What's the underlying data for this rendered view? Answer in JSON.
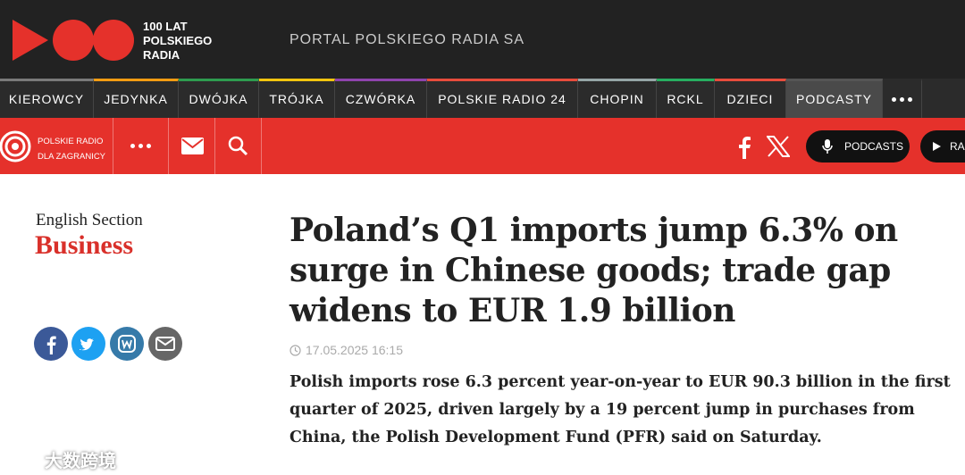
{
  "header": {
    "logo_text": [
      "100 LAT",
      "POLSKIEGO",
      "RADIA"
    ],
    "portal": "PORTAL POLSKIEGO RADIA SA"
  },
  "nav": [
    {
      "label": "KIEROWCY",
      "color": "#7a7a7a",
      "width": 105
    },
    {
      "label": "JEDYNKA",
      "color": "#f39c12",
      "width": 95
    },
    {
      "label": "DWÓJKA",
      "color": "#2e9c4f",
      "width": 90
    },
    {
      "label": "TRÓJKA",
      "color": "#f1c40f",
      "width": 85
    },
    {
      "label": "CZWÓRKA",
      "color": "#8e44ad",
      "width": 103
    },
    {
      "label": "POLSKIE RADIO 24",
      "color": "#e74c3c",
      "width": 169
    },
    {
      "label": "CHOPIN",
      "color": "#95a5a6",
      "width": 88
    },
    {
      "label": "RCKL",
      "color": "#27ae60",
      "width": 65
    },
    {
      "label": "DZIECI",
      "color": "#e74c3c",
      "width": 80
    },
    {
      "label": "PODCASTY",
      "color": "#555555",
      "width": 108,
      "active": true
    }
  ],
  "subheader": {
    "brand": [
      "POLSKIE RADIO",
      "DLA ZAGRANICY"
    ],
    "podcasts": "PODCASTS",
    "radio": "RA"
  },
  "article": {
    "section": "English Section",
    "category": "Business",
    "title": "Poland’s Q1 imports jump 6.3% on surge in Chinese goods; trade gap widens to EUR 1.9 billion",
    "date": "17.05.2025 16:15",
    "lead": "Polish imports rose 6.3 percent year-on-year to EUR 90.3 billion in the first quarter of 2025, driven largely by a 19 percent jump in purchases from China, the Polish Development Fund (PFR) said on Saturday."
  },
  "watermark": "大数跨境"
}
